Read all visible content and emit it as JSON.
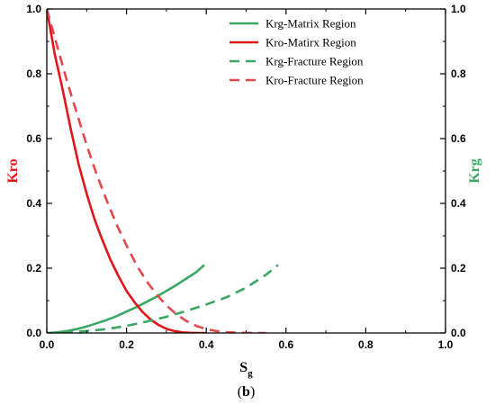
{
  "chart_data": {
    "type": "line",
    "xlabel": "S",
    "xlabel_subscript": "g",
    "ylabel_left": "Kro",
    "ylabel_right": "Krg",
    "panel_label_prefix": "(",
    "panel_label_letter": "b",
    "panel_label_suffix": ")",
    "xlim": [
      0,
      1.0
    ],
    "ylim_left": [
      0,
      1.0
    ],
    "ylim_right": [
      0,
      1.0
    ],
    "x_ticks": [
      "0.0",
      "0.2",
      "0.4",
      "0.6",
      "0.8",
      "1.0"
    ],
    "y_ticks_left": [
      "0.0",
      "0.2",
      "0.4",
      "0.6",
      "0.8",
      "1.0"
    ],
    "y_ticks_right": [
      "0.0",
      "0.2",
      "0.4",
      "0.6",
      "0.8",
      "1.0"
    ],
    "legend_position": "top-right",
    "grid": false,
    "colors": {
      "green": "#3aa864",
      "red": "#e0161b",
      "red_dashed": "#e3474c",
      "axis_left_title": "#e0161b",
      "axis_right_title": "#3aa864"
    },
    "series": [
      {
        "name": "Krg-Matrix Region",
        "color": "#3aa864",
        "dash": "solid",
        "axis": "right",
        "x": [
          0.0,
          0.025,
          0.05,
          0.075,
          0.1,
          0.125,
          0.15,
          0.175,
          0.2,
          0.225,
          0.25,
          0.275,
          0.3,
          0.325,
          0.35,
          0.375,
          0.395
        ],
        "y": [
          0.0,
          0.002,
          0.006,
          0.012,
          0.02,
          0.03,
          0.04,
          0.052,
          0.066,
          0.08,
          0.096,
          0.112,
          0.13,
          0.148,
          0.168,
          0.188,
          0.21
        ]
      },
      {
        "name": "Kro-Matirx Region",
        "color": "#e0161b",
        "dash": "solid",
        "axis": "left",
        "x": [
          0.0,
          0.01,
          0.02,
          0.04,
          0.06,
          0.08,
          0.1,
          0.12,
          0.14,
          0.16,
          0.18,
          0.2,
          0.22,
          0.24,
          0.26,
          0.28,
          0.3,
          0.32,
          0.34,
          0.36,
          0.38,
          0.4
        ],
        "y": [
          1.0,
          0.93,
          0.86,
          0.75,
          0.63,
          0.52,
          0.43,
          0.35,
          0.285,
          0.225,
          0.175,
          0.13,
          0.095,
          0.065,
          0.042,
          0.025,
          0.013,
          0.006,
          0.002,
          0.0005,
          0.0,
          0.0
        ]
      },
      {
        "name": "Krg-Fracture Region",
        "color": "#3aa864",
        "dash": "dashed",
        "axis": "right",
        "x": [
          0.0,
          0.05,
          0.1,
          0.15,
          0.2,
          0.25,
          0.3,
          0.35,
          0.4,
          0.45,
          0.5,
          0.55,
          0.58
        ],
        "y": [
          0.0,
          0.002,
          0.006,
          0.012,
          0.022,
          0.035,
          0.05,
          0.068,
          0.088,
          0.11,
          0.14,
          0.18,
          0.21
        ]
      },
      {
        "name": "Kro-Fracture Region",
        "color": "#e3474c",
        "dash": "dashed",
        "axis": "left",
        "x": [
          0.0,
          0.025,
          0.05,
          0.075,
          0.1,
          0.125,
          0.15,
          0.175,
          0.2,
          0.225,
          0.25,
          0.275,
          0.3,
          0.325,
          0.35,
          0.375,
          0.4,
          0.425,
          0.45,
          0.475,
          0.5,
          0.525,
          0.55
        ],
        "y": [
          1.0,
          0.89,
          0.78,
          0.68,
          0.58,
          0.49,
          0.41,
          0.335,
          0.27,
          0.21,
          0.16,
          0.12,
          0.085,
          0.058,
          0.037,
          0.022,
          0.012,
          0.006,
          0.0025,
          0.001,
          0.0003,
          0.0,
          0.0
        ]
      }
    ]
  }
}
